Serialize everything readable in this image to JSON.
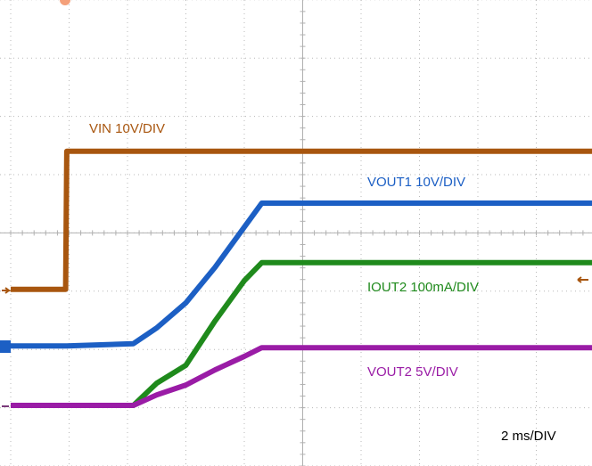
{
  "chart_data": {
    "type": "line",
    "x": [
      0,
      0.94,
      0.96,
      2.1,
      2.5,
      3.0,
      3.5,
      4.0,
      4.3,
      10
    ],
    "series": [
      {
        "name": "VIN 10V/DIV",
        "color": "#a8560f",
        "values": [
          3.03,
          3.03,
          5.4,
          5.4,
          5.4,
          5.4,
          5.4,
          5.4,
          5.4,
          5.4
        ]
      },
      {
        "name": "VOUT1 10V/DIV",
        "color": "#1c5fc4",
        "values": [
          2.06,
          2.06,
          2.06,
          2.1,
          2.37,
          2.8,
          3.41,
          4.1,
          4.51,
          4.51
        ]
      },
      {
        "name": "IOUT2 100mA/DIV",
        "color": "#1f8a1c",
        "values": [
          1.04,
          1.04,
          1.04,
          1.04,
          1.42,
          1.73,
          2.49,
          3.18,
          3.49,
          3.49
        ]
      },
      {
        "name": "VOUT2 5V/DIV",
        "color": "#9a1ca6",
        "values": [
          1.04,
          1.04,
          1.04,
          1.04,
          1.22,
          1.39,
          1.65,
          1.88,
          2.03,
          2.03
        ]
      }
    ],
    "annotation": "2 ms/DIV",
    "xlim": [
      0,
      10
    ],
    "ylim": [
      0,
      8
    ],
    "xticks": [
      0,
      1,
      2,
      3,
      4,
      5,
      6,
      7,
      8,
      9,
      10
    ],
    "yticks": [
      0,
      1,
      2,
      3,
      4,
      5,
      6,
      7,
      8
    ],
    "grid": true
  }
}
